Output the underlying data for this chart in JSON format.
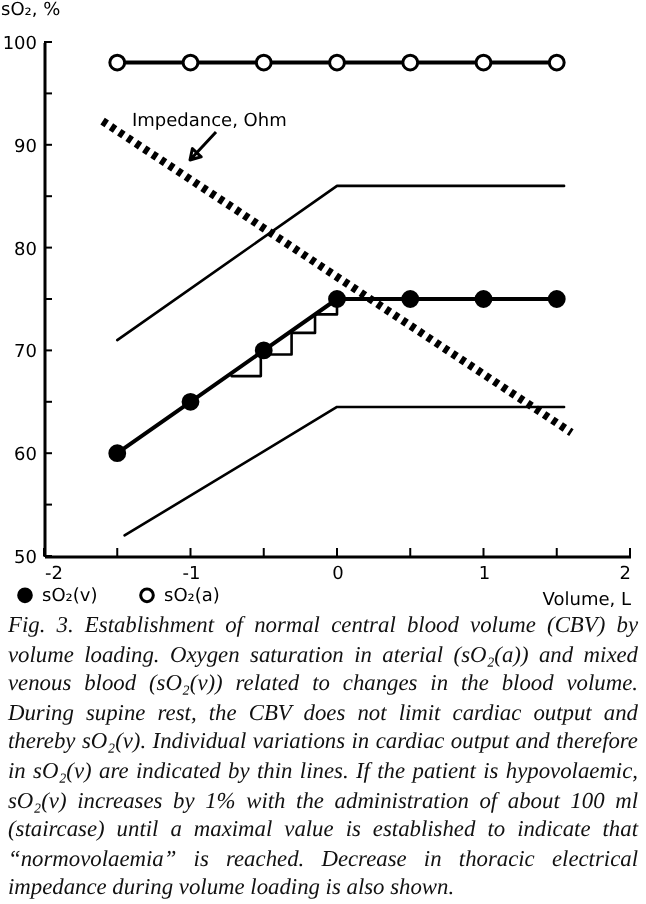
{
  "chart_data": {
    "type": "line",
    "xlabel": "Volume, L",
    "ylabel": "sO₂, %",
    "xlim": [
      -2,
      2
    ],
    "xticks": [
      -2,
      {
        "value": -1.5,
        "label": null
      },
      -1,
      {
        "value": -0.5,
        "label": null
      },
      0,
      {
        "value": 0.5,
        "label": null
      },
      1,
      {
        "value": 1.5,
        "label": null
      },
      2
    ],
    "ylim": [
      50,
      100
    ],
    "yticks": [
      50,
      {
        "value": 55,
        "label": null
      },
      60,
      {
        "value": 65,
        "label": null
      },
      70,
      {
        "value": 75,
        "label": null
      },
      80,
      {
        "value": 85,
        "label": null
      },
      90,
      {
        "value": 95,
        "label": null
      },
      100
    ],
    "grid": false,
    "legend": "bottom left",
    "series": [
      {
        "name": "sO₂(v)",
        "color": "#000000",
        "marker": "circle",
        "x": [
          -1.5,
          -1,
          -0.5,
          0,
          0.5,
          1,
          1.5
        ],
        "values": [
          60,
          65,
          70,
          75,
          75,
          75,
          75
        ]
      },
      {
        "name": "sO₂(a)",
        "color": "#000000",
        "colors": [
          "#ffffff",
          "#ffffff",
          "#ffffff",
          "#ffffff",
          "#ffffff",
          "#ffffff",
          "#ffffff"
        ],
        "marker": "circle",
        "x": [
          -1.5,
          -1,
          -0.5,
          0,
          0.5,
          1,
          1.5
        ],
        "values": [
          98,
          98,
          98,
          98,
          98,
          98,
          98
        ]
      },
      {
        "color": "#000000",
        "x": [
          -1.5,
          0,
          1.55
        ],
        "values": [
          71,
          86,
          86
        ]
      },
      {
        "color": "#000000",
        "x": [
          -1.45,
          0,
          1.55
        ],
        "values": [
          52,
          64.5,
          64.5
        ]
      },
      {
        "type": "step",
        "color": "#000000",
        "x": [
          -0.72,
          -0.52,
          -0.31,
          -0.15,
          0
        ],
        "values": [
          67.5,
          69.6,
          71.7,
          73.5,
          75
        ]
      },
      {
        "color": "#000000",
        "line_style": "dotted",
        "x": [
          -1.6,
          1.6
        ],
        "values": [
          92.3,
          62
        ]
      }
    ],
    "annotations": [
      "Impedance, Ohm",
      "Fig. 3. Establishment of normal central blood volume (CBV) by volume loading. Oxygen saturation in aterial (sO₂(a)) and mixed venous blood (sO₂(v)) related to changes in the blood volume. During supine rest, the CBV does not limit cardiac output and thereby sO₂(v). Individual variations in cardiac output and therefore in sO₂(v) are indicated by thin lines. If the patient is hypovolaemic, sO₂(v) increases by 1% with the administration of about 100 ml (staircase) until a maximal value is established to indicate that “normovolaemia” is reached. Decrease in thoracic electrical impedance during volume loading is also shown."
    ]
  }
}
